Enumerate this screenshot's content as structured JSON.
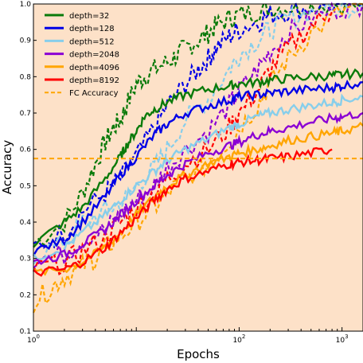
{
  "chart_data": {
    "type": "line",
    "title": "",
    "xlabel": "Epochs",
    "ylabel": "Accuracy",
    "xscale": "log",
    "xlim": [
      1,
      1600
    ],
    "ylim": [
      0.1,
      1.0
    ],
    "x_ticks": [
      {
        "value": 1,
        "base": "10",
        "exp": "0"
      },
      {
        "value": 100,
        "base": "10",
        "exp": "2"
      },
      {
        "value": 1000,
        "base": "10",
        "exp": "3"
      }
    ],
    "y_ticks": [
      "0.1",
      "0.2",
      "0.3",
      "0.4",
      "0.5",
      "0.6",
      "0.7",
      "0.8",
      "0.9",
      "1.0"
    ],
    "grid": false,
    "legend_position": "top-left",
    "background_color": "#fde1c8",
    "reference_line": {
      "name": "FC Accuracy",
      "y": 0.575,
      "color": "#ffa500",
      "style": "dashed"
    },
    "series": [
      {
        "name": "depth=32",
        "color": "#0a7a0a",
        "solid_x": [
          1,
          2,
          3,
          5,
          7,
          8,
          10,
          12,
          15,
          20,
          30,
          50,
          80,
          100,
          150,
          200,
          300,
          500,
          800,
          1000,
          1600
        ],
        "solid_y": [
          0.34,
          0.4,
          0.44,
          0.52,
          0.58,
          0.61,
          0.65,
          0.69,
          0.71,
          0.73,
          0.75,
          0.765,
          0.775,
          0.78,
          0.785,
          0.79,
          0.795,
          0.8,
          0.803,
          0.805,
          0.81
        ],
        "dashed_x": [
          1,
          2,
          3,
          4,
          5,
          6,
          7,
          8,
          10,
          12,
          15,
          20,
          25,
          30,
          40,
          50,
          60,
          80,
          100,
          150,
          200,
          300,
          500,
          1000,
          1600
        ],
        "dashed_y": [
          0.34,
          0.4,
          0.48,
          0.56,
          0.62,
          0.66,
          0.68,
          0.72,
          0.78,
          0.8,
          0.82,
          0.84,
          0.86,
          0.88,
          0.9,
          0.92,
          0.94,
          0.96,
          0.97,
          0.98,
          0.99,
          0.99,
          1.0,
          1.0,
          1.0
        ]
      },
      {
        "name": "depth=128",
        "color": "#0000e6",
        "solid_x": [
          1,
          2,
          3,
          5,
          7,
          10,
          15,
          20,
          30,
          50,
          80,
          100,
          150,
          200,
          300,
          500,
          800,
          1000,
          1600
        ],
        "solid_y": [
          0.32,
          0.35,
          0.4,
          0.47,
          0.53,
          0.58,
          0.64,
          0.67,
          0.7,
          0.72,
          0.735,
          0.745,
          0.75,
          0.755,
          0.76,
          0.765,
          0.77,
          0.775,
          0.785
        ],
        "dashed_x": [
          1,
          2,
          3,
          5,
          7,
          10,
          15,
          20,
          30,
          40,
          50,
          60,
          80,
          100,
          150,
          200,
          300,
          500,
          1000,
          1600
        ],
        "dashed_y": [
          0.33,
          0.37,
          0.43,
          0.48,
          0.52,
          0.58,
          0.66,
          0.72,
          0.78,
          0.82,
          0.85,
          0.88,
          0.91,
          0.93,
          0.95,
          0.97,
          0.98,
          0.99,
          1.0,
          1.0
        ]
      },
      {
        "name": "depth=512",
        "color": "#87ceeb",
        "solid_x": [
          1,
          2,
          3,
          5,
          7,
          10,
          15,
          20,
          30,
          50,
          80,
          100,
          150,
          200,
          300,
          500,
          800,
          1000,
          1600
        ],
        "solid_y": [
          0.3,
          0.33,
          0.37,
          0.42,
          0.46,
          0.5,
          0.54,
          0.57,
          0.6,
          0.63,
          0.66,
          0.67,
          0.69,
          0.7,
          0.71,
          0.72,
          0.73,
          0.735,
          0.745
        ],
        "dashed_x": [
          1,
          2,
          3,
          5,
          7,
          10,
          15,
          20,
          30,
          50,
          80,
          100,
          150,
          200,
          300,
          500,
          1000,
          1600
        ],
        "dashed_y": [
          0.31,
          0.34,
          0.4,
          0.43,
          0.45,
          0.5,
          0.55,
          0.6,
          0.68,
          0.74,
          0.82,
          0.86,
          0.9,
          0.93,
          0.96,
          0.98,
          0.99,
          1.0
        ]
      },
      {
        "name": "depth=2048",
        "color": "#8b00d4",
        "solid_x": [
          1,
          2,
          3,
          5,
          7,
          10,
          15,
          20,
          30,
          50,
          80,
          100,
          150,
          200,
          300,
          500,
          800,
          1000,
          1600
        ],
        "solid_y": [
          0.29,
          0.31,
          0.34,
          0.38,
          0.42,
          0.46,
          0.5,
          0.53,
          0.56,
          0.59,
          0.61,
          0.62,
          0.64,
          0.65,
          0.66,
          0.675,
          0.685,
          0.69,
          0.7
        ],
        "dashed_x": [
          1,
          2,
          3,
          5,
          7,
          10,
          15,
          20,
          30,
          50,
          80,
          100,
          150,
          200,
          300,
          500,
          1000,
          1600
        ],
        "dashed_y": [
          0.3,
          0.31,
          0.35,
          0.38,
          0.42,
          0.46,
          0.5,
          0.55,
          0.6,
          0.65,
          0.72,
          0.76,
          0.82,
          0.87,
          0.92,
          0.96,
          0.99,
          1.0
        ]
      },
      {
        "name": "depth=4096",
        "color": "#ffa500",
        "solid_x": [
          1,
          2,
          3,
          5,
          7,
          10,
          15,
          20,
          30,
          50,
          80,
          100,
          150,
          200,
          300,
          500,
          800,
          1000,
          1600
        ],
        "solid_y": [
          0.26,
          0.27,
          0.29,
          0.33,
          0.37,
          0.42,
          0.47,
          0.5,
          0.53,
          0.56,
          0.58,
          0.59,
          0.6,
          0.61,
          0.625,
          0.635,
          0.645,
          0.65,
          0.665
        ],
        "dashed_x": [
          1,
          1.5,
          2,
          3,
          4,
          5,
          7,
          10,
          15,
          20,
          30,
          50,
          80,
          100,
          150,
          200,
          300,
          500,
          1000,
          1600
        ],
        "dashed_y": [
          0.18,
          0.22,
          0.25,
          0.28,
          0.3,
          0.33,
          0.36,
          0.4,
          0.44,
          0.48,
          0.52,
          0.56,
          0.62,
          0.66,
          0.72,
          0.78,
          0.85,
          0.92,
          0.98,
          1.0
        ]
      },
      {
        "name": "depth=8192",
        "color": "#ff0000",
        "solid_x": [
          1,
          2,
          3,
          5,
          7,
          10,
          15,
          20,
          30,
          50,
          80,
          100,
          150,
          200,
          300,
          500,
          800
        ],
        "solid_y": [
          0.26,
          0.27,
          0.29,
          0.33,
          0.37,
          0.41,
          0.46,
          0.49,
          0.52,
          0.54,
          0.56,
          0.565,
          0.57,
          0.575,
          0.58,
          0.59,
          0.6
        ],
        "dashed_x": [
          1,
          2,
          3,
          5,
          7,
          10,
          15,
          20,
          30,
          50,
          80,
          100,
          150,
          200,
          300,
          500,
          800
        ],
        "dashed_y": [
          0.27,
          0.29,
          0.32,
          0.36,
          0.4,
          0.44,
          0.48,
          0.52,
          0.56,
          0.6,
          0.66,
          0.7,
          0.76,
          0.82,
          0.88,
          0.94,
          0.98
        ]
      }
    ]
  }
}
